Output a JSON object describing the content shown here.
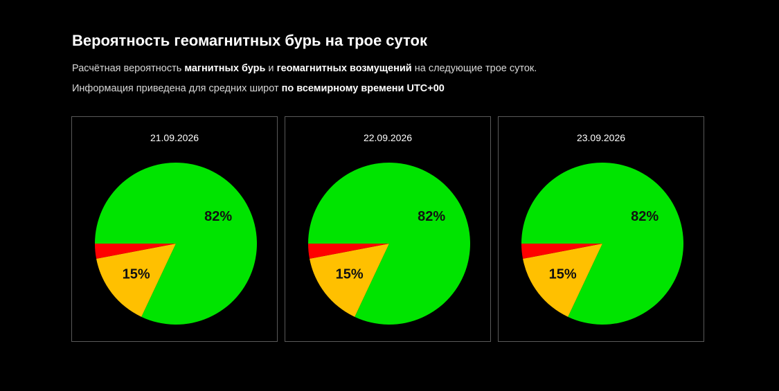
{
  "header": {
    "title": "Вероятность геомагнитных бурь на трое суток",
    "line1_pre": "Расчётная вероятность ",
    "line1_b1": "магнитных бурь",
    "line1_mid": " и ",
    "line1_b2": "геомагнитных возмущений",
    "line1_post": " на следующие трое суток.",
    "line2_pre": "Информация приведена для средних широт ",
    "line2_b": "по всемирному времени UTC+00"
  },
  "colors": {
    "background": "#000000",
    "calm": "#00e400",
    "disturbance": "#ffc000",
    "storm": "#ff0000"
  },
  "chart_data": [
    {
      "type": "pie",
      "title": "21.09.2026",
      "slices": [
        {
          "value": 82,
          "label": "82%",
          "color": "#00e400"
        },
        {
          "value": 15,
          "label": "15%",
          "color": "#ffc000"
        },
        {
          "value": 3,
          "label": "",
          "color": "#ff0000"
        }
      ]
    },
    {
      "type": "pie",
      "title": "22.09.2026",
      "slices": [
        {
          "value": 82,
          "label": "82%",
          "color": "#00e400"
        },
        {
          "value": 15,
          "label": "15%",
          "color": "#ffc000"
        },
        {
          "value": 3,
          "label": "",
          "color": "#ff0000"
        }
      ]
    },
    {
      "type": "pie",
      "title": "23.09.2026",
      "slices": [
        {
          "value": 82,
          "label": "82%",
          "color": "#00e400"
        },
        {
          "value": 15,
          "label": "15%",
          "color": "#ffc000"
        },
        {
          "value": 3,
          "label": "",
          "color": "#ff0000"
        }
      ]
    }
  ]
}
